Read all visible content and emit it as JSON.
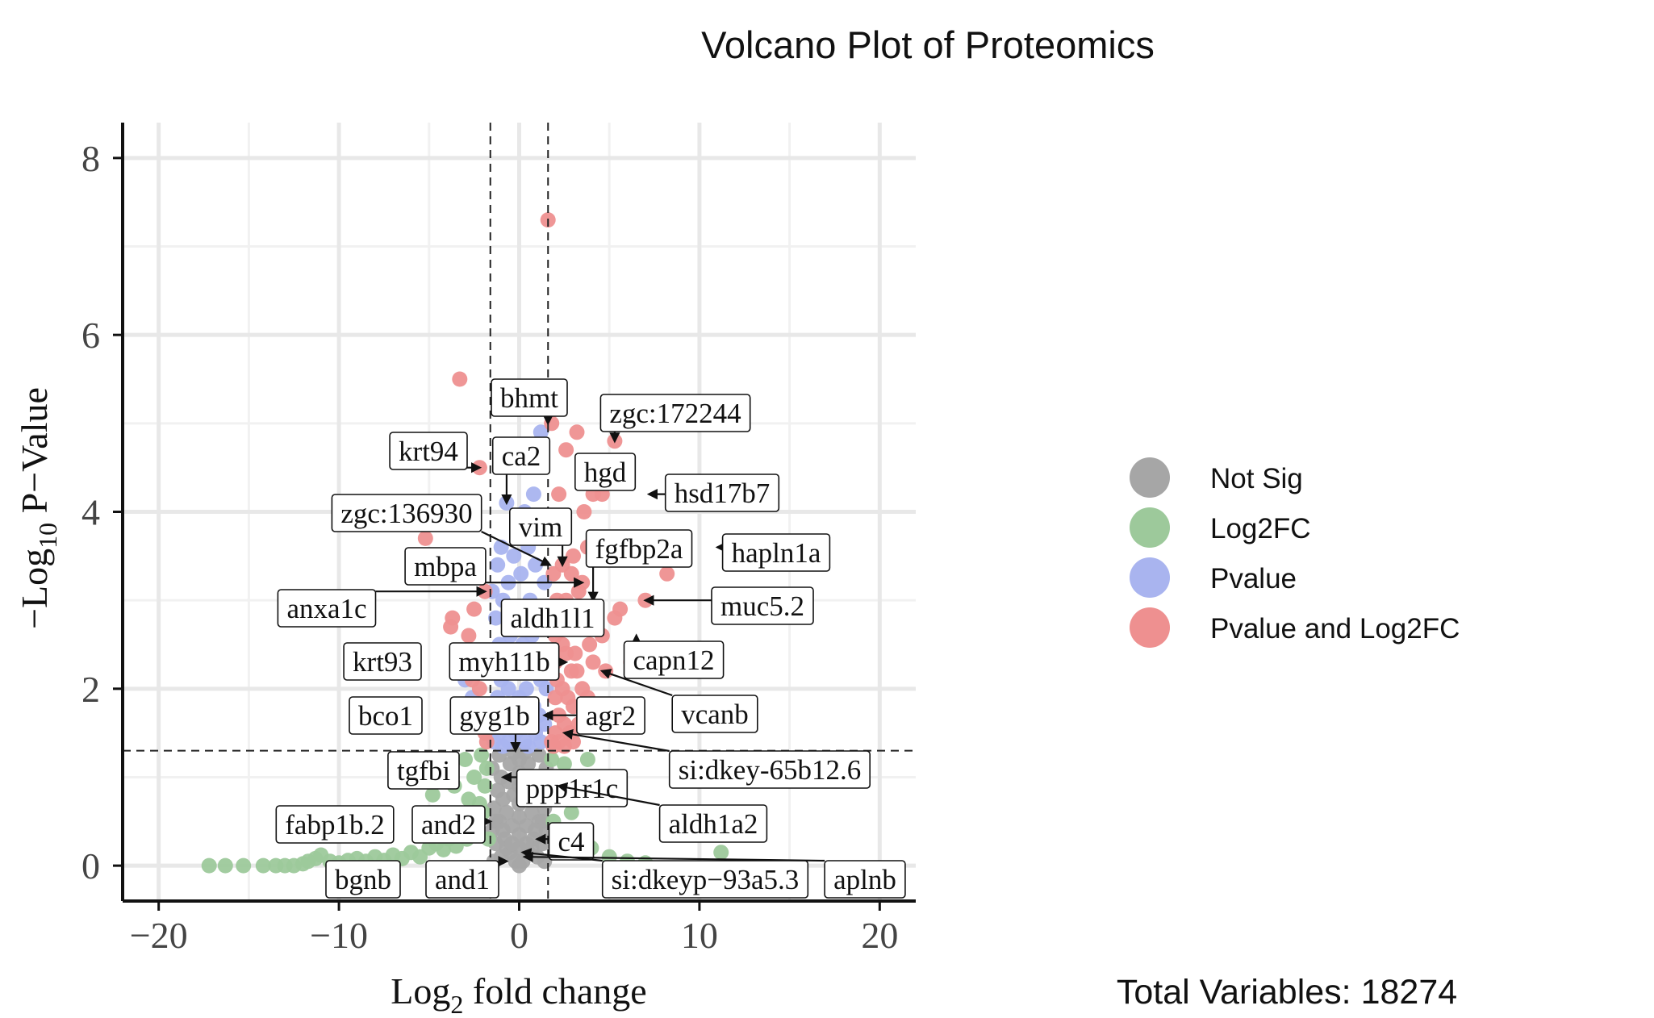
{
  "chart_data": {
    "type": "scatter",
    "title": "Volcano Plot of Proteomics",
    "xlabel_base": "Log",
    "xlabel_sub": "2",
    "xlabel_rest": " fold change",
    "ylabel_pre": "−Log",
    "ylabel_sub": "10",
    "ylabel_rest": " P−Value",
    "xlim": [
      -22,
      22
    ],
    "ylim": [
      -0.4,
      8.4
    ],
    "xticks": [
      -20,
      -10,
      0,
      10,
      20
    ],
    "xtick_labels": [
      "−20",
      "−10",
      "0",
      "10",
      "20"
    ],
    "yticks": [
      0,
      2,
      4,
      6,
      8
    ],
    "ytick_labels": [
      "0",
      "2",
      "4",
      "6",
      "8"
    ],
    "grid": true,
    "cutoffs": {
      "log2fc": [
        -1.6,
        1.6
      ],
      "neg_log10_p": 1.3
    },
    "legend_position": "right",
    "legend": [
      {
        "key": "ns",
        "label": "Not Sig",
        "color": "#a6a6a6"
      },
      {
        "key": "fc",
        "label": "Log2FC",
        "color": "#9dc99b"
      },
      {
        "key": "p",
        "label": "Pvalue",
        "color": "#a9b4ef"
      },
      {
        "key": "both",
        "label": "Pvalue and Log2FC",
        "color": "#ee9090"
      }
    ],
    "caption": "Total Variables: 18274",
    "points": {
      "both": [
        [
          1.6,
          7.3
        ],
        [
          -3.3,
          5.5
        ],
        [
          1.8,
          5.0
        ],
        [
          3.2,
          4.9
        ],
        [
          5.3,
          4.8
        ],
        [
          2.6,
          4.7
        ],
        [
          -2.2,
          4.5
        ],
        [
          4.6,
          4.2
        ],
        [
          2.2,
          4.2
        ],
        [
          4.1,
          4.2
        ],
        [
          3.6,
          4.0
        ],
        [
          1.7,
          3.9
        ],
        [
          2.4,
          3.9
        ],
        [
          -5.2,
          3.7
        ],
        [
          3.8,
          3.6
        ],
        [
          8.2,
          3.3
        ],
        [
          2.4,
          3.4
        ],
        [
          2.9,
          3.3
        ],
        [
          1.9,
          3.3
        ],
        [
          3.5,
          3.2
        ],
        [
          3.3,
          3.1
        ],
        [
          2.1,
          3.0
        ],
        [
          2.6,
          3.0
        ],
        [
          -1.9,
          3.1
        ],
        [
          7.0,
          3.0
        ],
        [
          5.6,
          2.9
        ],
        [
          4.2,
          2.9
        ],
        [
          2.3,
          2.8
        ],
        [
          -3.7,
          2.8
        ],
        [
          5.3,
          2.8
        ],
        [
          2.8,
          2.8
        ],
        [
          3.6,
          2.7
        ],
        [
          -3.8,
          2.7
        ],
        [
          2.0,
          2.6
        ],
        [
          -2.8,
          2.6
        ],
        [
          4.6,
          2.6
        ],
        [
          2.4,
          2.5
        ],
        [
          3.9,
          2.5
        ],
        [
          3.1,
          2.4
        ],
        [
          2.6,
          2.4
        ],
        [
          2.0,
          2.3
        ],
        [
          4.1,
          2.3
        ],
        [
          2.9,
          2.2
        ],
        [
          3.2,
          2.2
        ],
        [
          4.8,
          2.2
        ],
        [
          2.1,
          2.1
        ],
        [
          -2.6,
          2.1
        ],
        [
          3.5,
          2.0
        ],
        [
          2.4,
          2.0
        ],
        [
          -2.2,
          2.0
        ],
        [
          3.8,
          1.9
        ],
        [
          2.0,
          1.9
        ],
        [
          2.7,
          1.9
        ],
        [
          -2.0,
          1.8
        ],
        [
          3.0,
          1.8
        ],
        [
          4.0,
          1.8
        ],
        [
          2.2,
          1.7
        ],
        [
          2.5,
          1.6
        ],
        [
          -2.1,
          1.6
        ],
        [
          3.3,
          1.6
        ],
        [
          2.0,
          1.5
        ],
        [
          2.8,
          1.5
        ],
        [
          -1.9,
          1.5
        ],
        [
          1.8,
          1.4
        ],
        [
          2.2,
          1.4
        ],
        [
          3.0,
          1.4
        ],
        [
          -1.8,
          1.4
        ],
        [
          2.5,
          1.35
        ],
        [
          1.9,
          1.35
        ],
        [
          4.5,
          1.7
        ],
        [
          -3.1,
          2.3
        ],
        [
          6.2,
          2.3
        ],
        [
          1.8,
          2.8
        ],
        [
          3.0,
          3.5
        ],
        [
          2.2,
          3.7
        ],
        [
          -2.5,
          2.9
        ]
      ],
      "p": [
        [
          1.2,
          4.9
        ],
        [
          -0.7,
          4.1
        ],
        [
          0.8,
          4.2
        ],
        [
          0.3,
          4.0
        ],
        [
          -1.0,
          3.6
        ],
        [
          1.3,
          3.7
        ],
        [
          0.5,
          3.6
        ],
        [
          -0.3,
          3.5
        ],
        [
          0.9,
          3.4
        ],
        [
          -1.2,
          3.4
        ],
        [
          0.1,
          3.3
        ],
        [
          1.4,
          3.2
        ],
        [
          -0.6,
          3.2
        ],
        [
          -1.5,
          3.1
        ],
        [
          0.6,
          3.0
        ],
        [
          -0.9,
          3.0
        ],
        [
          1.1,
          2.9
        ],
        [
          -0.2,
          2.9
        ],
        [
          0.3,
          2.8
        ],
        [
          -1.3,
          2.8
        ],
        [
          1.0,
          2.7
        ],
        [
          -0.5,
          2.6
        ],
        [
          0.7,
          2.6
        ],
        [
          -1.1,
          2.5
        ],
        [
          0.2,
          2.5
        ],
        [
          1.3,
          2.4
        ],
        [
          -0.8,
          2.4
        ],
        [
          0.5,
          2.3
        ],
        [
          -1.4,
          2.3
        ],
        [
          0.9,
          2.2
        ],
        [
          -0.3,
          2.2
        ],
        [
          1.2,
          2.1
        ],
        [
          -1.0,
          2.1
        ],
        [
          0.4,
          2.0
        ],
        [
          -0.6,
          2.0
        ],
        [
          1.5,
          2.0
        ],
        [
          0.0,
          1.9
        ],
        [
          -1.2,
          1.9
        ],
        [
          0.8,
          1.8
        ],
        [
          -0.4,
          1.8
        ],
        [
          1.1,
          1.7
        ],
        [
          -1.5,
          1.7
        ],
        [
          0.2,
          1.7
        ],
        [
          -0.8,
          1.6
        ],
        [
          0.6,
          1.6
        ],
        [
          1.4,
          1.6
        ],
        [
          -0.2,
          1.5
        ],
        [
          -1.1,
          1.5
        ],
        [
          0.9,
          1.5
        ],
        [
          0.3,
          1.4
        ],
        [
          -0.6,
          1.4
        ],
        [
          1.2,
          1.4
        ],
        [
          -1.4,
          1.4
        ],
        [
          0.5,
          1.35
        ],
        [
          -0.9,
          1.35
        ],
        [
          -3.0,
          2.1
        ],
        [
          -2.6,
          1.9
        ]
      ],
      "fc": [
        [
          -17.2,
          0.0
        ],
        [
          -16.3,
          0.0
        ],
        [
          -15.3,
          0.0
        ],
        [
          -14.2,
          0.0
        ],
        [
          -13.5,
          0.0
        ],
        [
          -13.0,
          0.0
        ],
        [
          -12.5,
          0.0
        ],
        [
          -12.0,
          0.02
        ],
        [
          -11.7,
          0.05
        ],
        [
          -11.3,
          0.08
        ],
        [
          -11.0,
          0.12
        ],
        [
          -10.5,
          0.05
        ],
        [
          -10.0,
          0.03
        ],
        [
          -9.5,
          0.06
        ],
        [
          -9.0,
          0.08
        ],
        [
          -8.5,
          0.05
        ],
        [
          -8.0,
          0.1
        ],
        [
          -7.5,
          0.06
        ],
        [
          -7.0,
          0.12
        ],
        [
          -6.5,
          0.08
        ],
        [
          -6.0,
          0.15
        ],
        [
          -5.5,
          0.1
        ],
        [
          -5.0,
          0.2
        ],
        [
          -4.6,
          0.25
        ],
        [
          -4.2,
          0.18
        ],
        [
          -3.9,
          0.3
        ],
        [
          -3.5,
          0.22
        ],
        [
          -3.2,
          0.4
        ],
        [
          -2.9,
          0.3
        ],
        [
          -2.6,
          0.55
        ],
        [
          -2.4,
          0.45
        ],
        [
          -2.2,
          0.7
        ],
        [
          -2.0,
          0.6
        ],
        [
          -1.9,
          0.9
        ],
        [
          -1.8,
          1.1
        ],
        [
          -2.5,
          1.0
        ],
        [
          -3.6,
          0.9
        ],
        [
          -4.8,
          0.8
        ],
        [
          -2.8,
          0.75
        ],
        [
          -3.0,
          1.2
        ],
        [
          -2.1,
          1.25
        ],
        [
          1.8,
          1.2
        ],
        [
          2.1,
          1.0
        ],
        [
          2.5,
          1.15
        ],
        [
          3.8,
          1.2
        ],
        [
          2.0,
          0.8
        ],
        [
          2.9,
          0.6
        ],
        [
          3.5,
          0.4
        ],
        [
          2.3,
          0.3
        ],
        [
          4.0,
          0.2
        ],
        [
          5.0,
          0.1
        ],
        [
          6.0,
          0.05
        ],
        [
          7.0,
          0.03
        ],
        [
          11.2,
          0.15
        ],
        [
          1.9,
          0.5
        ],
        [
          2.7,
          0.15
        ],
        [
          -1.7,
          0.3
        ]
      ],
      "ns": [
        [
          0,
          0.0
        ],
        [
          -1.4,
          0.05
        ],
        [
          1.4,
          0.05
        ],
        [
          -1.0,
          0.1
        ],
        [
          1.0,
          0.1
        ],
        [
          -0.5,
          0.15
        ],
        [
          0.5,
          0.15
        ],
        [
          0,
          0.2
        ],
        [
          -1.3,
          0.25
        ],
        [
          1.3,
          0.25
        ],
        [
          -0.8,
          0.3
        ],
        [
          0.8,
          0.3
        ],
        [
          0,
          0.35
        ],
        [
          -1.5,
          0.4
        ],
        [
          1.5,
          0.4
        ],
        [
          -0.4,
          0.45
        ],
        [
          0.4,
          0.45
        ],
        [
          -1.1,
          0.5
        ],
        [
          1.1,
          0.5
        ],
        [
          0,
          0.55
        ],
        [
          -0.7,
          0.6
        ],
        [
          0.7,
          0.6
        ],
        [
          -1.4,
          0.65
        ],
        [
          1.4,
          0.65
        ],
        [
          0,
          0.7
        ],
        [
          -0.9,
          0.75
        ],
        [
          0.9,
          0.75
        ],
        [
          -0.3,
          0.8
        ],
        [
          0.3,
          0.8
        ],
        [
          -1.2,
          0.85
        ],
        [
          1.2,
          0.85
        ],
        [
          0,
          0.9
        ],
        [
          -0.6,
          0.95
        ],
        [
          0.6,
          0.95
        ],
        [
          -1.0,
          1.0
        ],
        [
          1.0,
          1.0
        ],
        [
          0,
          1.05
        ],
        [
          -1.5,
          1.1
        ],
        [
          1.5,
          1.1
        ],
        [
          -0.5,
          1.15
        ],
        [
          0.5,
          1.15
        ],
        [
          0,
          1.2
        ],
        [
          -1.1,
          1.25
        ],
        [
          1.1,
          1.25
        ],
        [
          -0.3,
          1.28
        ],
        [
          0.3,
          1.28
        ],
        [
          -0.7,
          0.2
        ],
        [
          0.7,
          0.2
        ],
        [
          -0.2,
          0.05
        ],
        [
          0.2,
          0.05
        ],
        [
          -1.3,
          0.5
        ],
        [
          1.3,
          0.5
        ],
        [
          -0.9,
          0.4
        ],
        [
          0.9,
          0.4
        ],
        [
          -0.4,
          0.25
        ],
        [
          0.4,
          0.25
        ]
      ]
    },
    "annotations": [
      {
        "label": "bhmt",
        "x": 1.6,
        "y": 5.0
      },
      {
        "label": "zgc:172244",
        "x": 5.3,
        "y": 4.8
      },
      {
        "label": "krt94",
        "x": -2.2,
        "y": 4.5
      },
      {
        "label": "ca2",
        "x": -0.7,
        "y": 4.1
      },
      {
        "label": "hgd",
        "x": 4.6,
        "y": 4.2
      },
      {
        "label": "hsd17b7",
        "x": 7.2,
        "y": 4.2
      },
      {
        "label": "zgc:136930",
        "x": 1.7,
        "y": 3.4
      },
      {
        "label": "vim",
        "x": 2.4,
        "y": 3.4
      },
      {
        "label": "fgfbp2a",
        "x": 4.1,
        "y": 3.0
      },
      {
        "label": "hapln1a",
        "x": 11.0,
        "y": 3.6
      },
      {
        "label": "mbpa",
        "x": 3.5,
        "y": 3.2
      },
      {
        "label": "muc5.2",
        "x": 7.0,
        "y": 3.0
      },
      {
        "label": "anxa1c",
        "x": -1.9,
        "y": 3.1
      },
      {
        "label": "aldh1l1",
        "x": 3.0,
        "y": 2.6
      },
      {
        "label": "capn12",
        "x": 6.5,
        "y": 2.6
      },
      {
        "label": "krt93",
        "x": -5.2,
        "y": 2.4
      },
      {
        "label": "myh11b",
        "x": 2.6,
        "y": 2.3
      },
      {
        "label": "vcanb",
        "x": 4.6,
        "y": 2.2
      },
      {
        "label": "bco1",
        "x": -5.2,
        "y": 1.8
      },
      {
        "label": "gyg1b",
        "x": -0.2,
        "y": 1.3
      },
      {
        "label": "agr2",
        "x": 1.4,
        "y": 1.7
      },
      {
        "label": "si:dkey-65b12.6",
        "x": 2.5,
        "y": 1.5
      },
      {
        "label": "tgfbi",
        "x": -3.2,
        "y": 1.3
      },
      {
        "label": "ppp1r1c",
        "x": -0.9,
        "y": 1.0
      },
      {
        "label": "aldh1a2",
        "x": 2.2,
        "y": 0.9
      },
      {
        "label": "fabp1b.2",
        "x": -7.5,
        "y": 0.5
      },
      {
        "label": "and2",
        "x": -1.6,
        "y": 0.5
      },
      {
        "label": "c4",
        "x": 1.0,
        "y": 0.3
      },
      {
        "label": "bgnb",
        "x": -6.5,
        "y": -0.05
      },
      {
        "label": "and1",
        "x": -0.7,
        "y": 0.05
      },
      {
        "label": "si:dkeyp−93a5.3",
        "x": 0.2,
        "y": 0.15
      },
      {
        "label": "aplnb",
        "x": 0.3,
        "y": 0.1
      }
    ]
  }
}
